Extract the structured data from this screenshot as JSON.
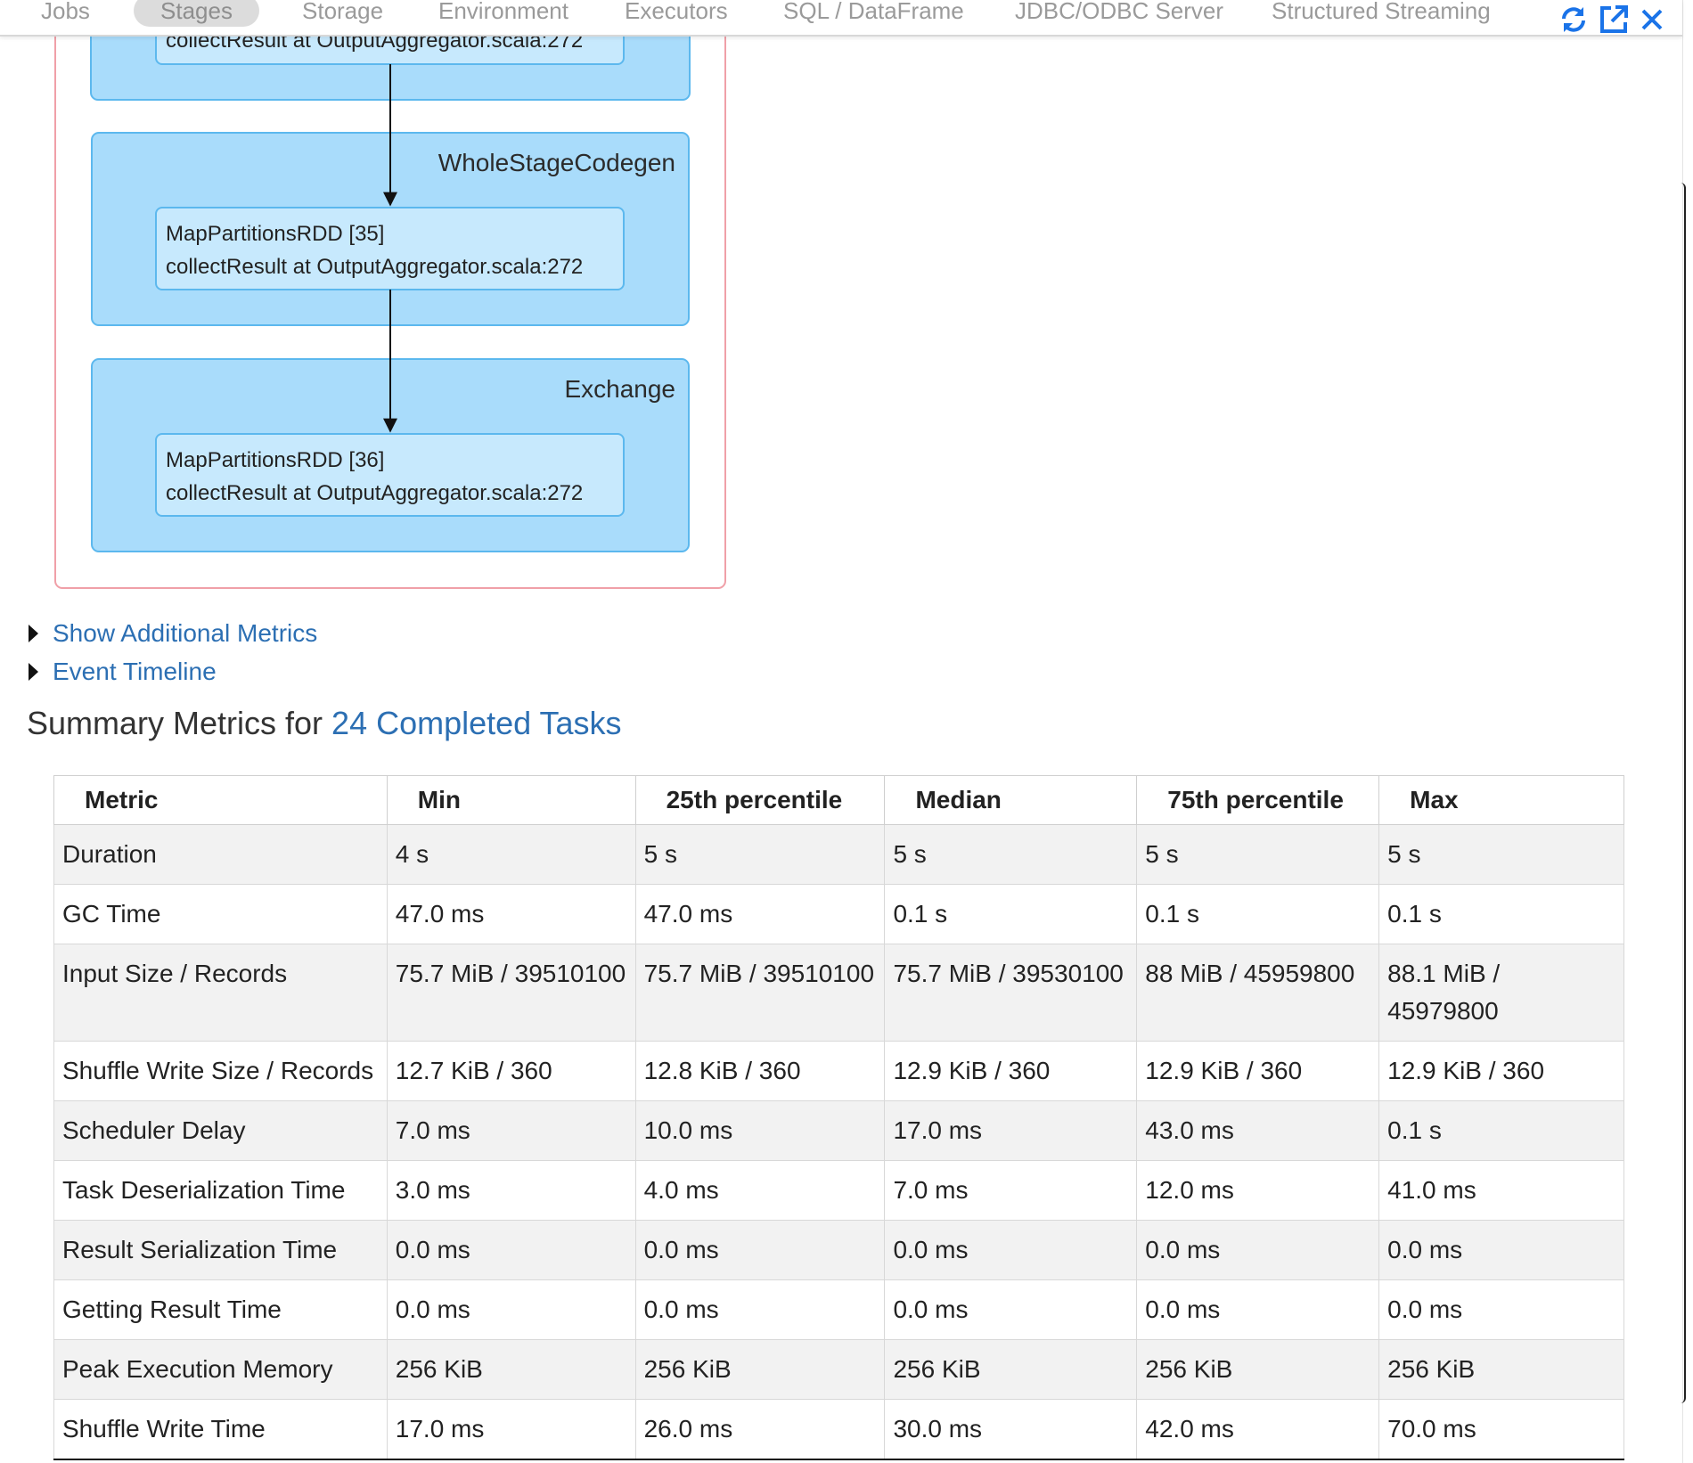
{
  "nav": {
    "items": [
      "Jobs",
      "Stages",
      "Storage",
      "Environment",
      "Executors",
      "SQL / DataFrame",
      "JDBC/ODBC Server",
      "Structured Streaming"
    ],
    "active": "Stages",
    "icons": [
      "refresh-icon",
      "open-external-icon",
      "close-icon"
    ],
    "accent": "#1a73e8"
  },
  "dag": {
    "top_partial_text": "collectResult at OutputAggregator.scala:272",
    "clusters": [
      {
        "label": "WholeStageCodegen",
        "rdd_name": "MapPartitionsRDD [35]",
        "rdd_call": "collectResult at OutputAggregator.scala:272"
      },
      {
        "label": "Exchange",
        "rdd_name": "MapPartitionsRDD [36]",
        "rdd_call": "collectResult at OutputAggregator.scala:272"
      }
    ],
    "colors": {
      "cluster_fill": "#a9dcfb",
      "node_fill": "#c7e9fd",
      "border": "#5cb8ee",
      "stage_border": "#f0a0a8"
    }
  },
  "links": {
    "additional_metrics": "Show Additional Metrics",
    "event_timeline": "Event Timeline"
  },
  "summary": {
    "prefix": "Summary Metrics for ",
    "link": "24 Completed Tasks"
  },
  "table": {
    "headers": [
      "Metric",
      "Min",
      "25th percentile",
      "Median",
      "75th percentile",
      "Max"
    ],
    "rows": [
      [
        "Duration",
        "4 s",
        "5 s",
        "5 s",
        "5 s",
        "5 s"
      ],
      [
        "GC Time",
        "47.0 ms",
        "47.0 ms",
        "0.1 s",
        "0.1 s",
        "0.1 s"
      ],
      [
        "Input Size / Records",
        "75.7 MiB / 39510100",
        "75.7 MiB / 39510100",
        "75.7 MiB / 39530100",
        "88 MiB / 45959800",
        "88.1 MiB / 45979800"
      ],
      [
        "Shuffle Write Size / Records",
        "12.7 KiB / 360",
        "12.8 KiB / 360",
        "12.9 KiB / 360",
        "12.9 KiB / 360",
        "12.9 KiB / 360"
      ],
      [
        "Scheduler Delay",
        "7.0 ms",
        "10.0 ms",
        "17.0 ms",
        "43.0 ms",
        "0.1 s"
      ],
      [
        "Task Deserialization Time",
        "3.0 ms",
        "4.0 ms",
        "7.0 ms",
        "12.0 ms",
        "41.0 ms"
      ],
      [
        "Result Serialization Time",
        "0.0 ms",
        "0.0 ms",
        "0.0 ms",
        "0.0 ms",
        "0.0 ms"
      ],
      [
        "Getting Result Time",
        "0.0 ms",
        "0.0 ms",
        "0.0 ms",
        "0.0 ms",
        "0.0 ms"
      ],
      [
        "Peak Execution Memory",
        "256 KiB",
        "256 KiB",
        "256 KiB",
        "256 KiB",
        "256 KiB"
      ],
      [
        "Shuffle Write Time",
        "17.0 ms",
        "26.0 ms",
        "30.0 ms",
        "42.0 ms",
        "70.0 ms"
      ]
    ]
  }
}
